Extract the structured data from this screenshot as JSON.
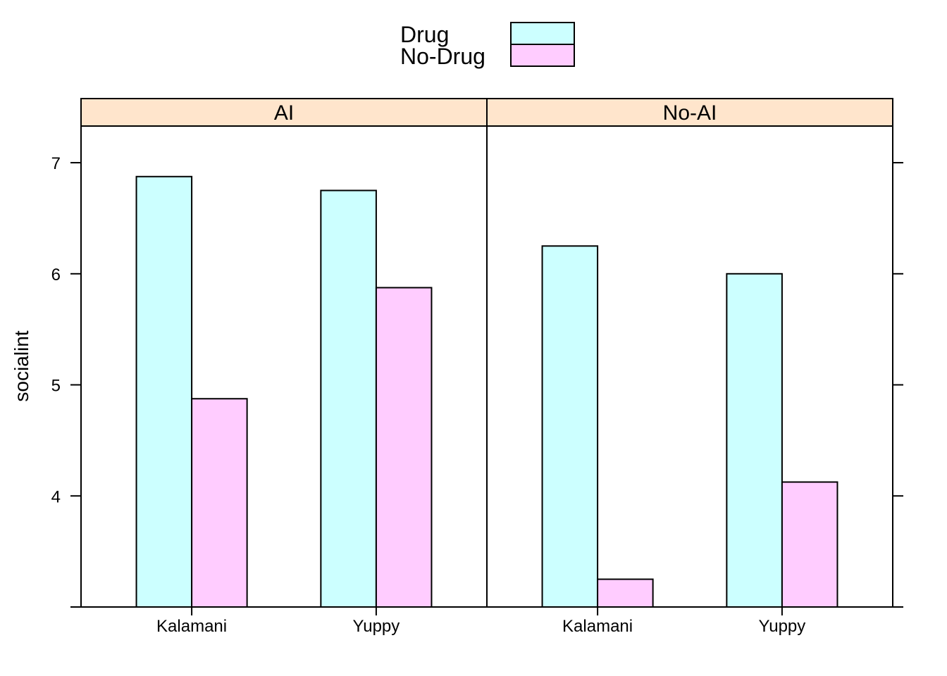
{
  "chart_data": {
    "type": "bar",
    "ylabel": "socialint",
    "xlabel": "",
    "ylim": [
      3,
      7.33
    ],
    "y_ticks": [
      4,
      5,
      6,
      7
    ],
    "grid": false,
    "legend": {
      "position": "top-center",
      "entries": [
        {
          "name": "Drug",
          "color": "#CCFFFF"
        },
        {
          "name": "No-Drug",
          "color": "#FFCCFF"
        }
      ]
    },
    "strip_color": "#FFE5CC",
    "panels": [
      {
        "label": "AI",
        "categories": [
          "Kalamani",
          "Yuppy"
        ],
        "series": [
          {
            "name": "Drug",
            "values": [
              6.875,
              6.75
            ]
          },
          {
            "name": "No-Drug",
            "values": [
              4.875,
              5.875
            ]
          }
        ]
      },
      {
        "label": "No-AI",
        "categories": [
          "Kalamani",
          "Yuppy"
        ],
        "series": [
          {
            "name": "Drug",
            "values": [
              6.25,
              6.0
            ]
          },
          {
            "name": "No-Drug",
            "values": [
              3.25,
              4.125
            ]
          }
        ]
      }
    ]
  }
}
